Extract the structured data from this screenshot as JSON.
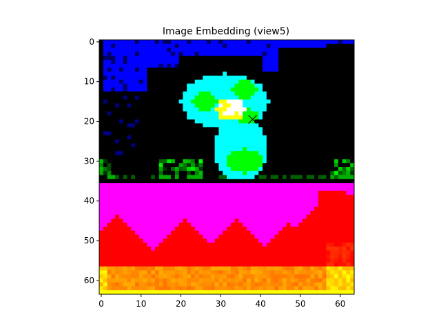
{
  "chart_data": {
    "type": "heatmap",
    "title": "Image Embedding (view5)",
    "xlabel": "",
    "ylabel": "",
    "xlim": [
      -0.5,
      63.5
    ],
    "ylim": [
      63.5,
      -0.5
    ],
    "grid": false,
    "x_ticks": [
      0,
      10,
      20,
      30,
      40,
      50,
      60
    ],
    "y_ticks": [
      0,
      10,
      20,
      30,
      40,
      50,
      60
    ],
    "marker": {
      "symbol": "x",
      "x": 38,
      "y": 19.5,
      "color": "#000000"
    },
    "bottom_band_start_row": 36,
    "colors": {
      "top_background": "#000000",
      "sky": "#0000ff",
      "bird_body": "#00ffff",
      "bird_highlight": "#00ff00",
      "bird_center": "#ffffff",
      "bottom_background": "#ff00ff",
      "hills": "#ff0000",
      "ground_low": "#ff5a00",
      "ground_high": "#ffff00"
    }
  }
}
